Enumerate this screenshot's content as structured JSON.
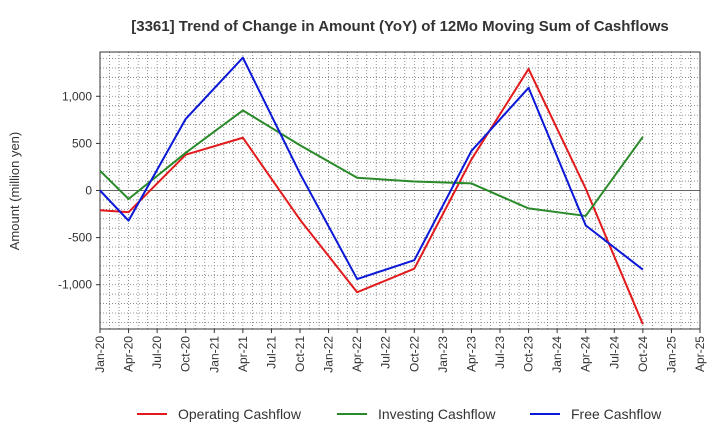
{
  "chart_data": {
    "type": "line",
    "title": "[3361]  Trend of Change in Amount (YoY) of 12Mo Moving Sum of Cashflows",
    "xlabel": "",
    "ylabel": "Amount (million yen)",
    "ylim": [
      -1470,
      1470
    ],
    "y_ticks": [
      1000,
      500,
      0,
      -500,
      -1000
    ],
    "y_tick_labels": [
      "1,000",
      "500",
      "0",
      "-500",
      "-1,000"
    ],
    "x_tick_labels": [
      "Jan-20",
      "Apr-20",
      "Jul-20",
      "Oct-20",
      "Jan-21",
      "Apr-21",
      "Jul-21",
      "Oct-21",
      "Jan-22",
      "Apr-22",
      "Jul-22",
      "Oct-22",
      "Jan-23",
      "Apr-23",
      "Jul-23",
      "Oct-23",
      "Jan-24",
      "Apr-24",
      "Jul-24",
      "Oct-24",
      "Jan-25",
      "Apr-25"
    ],
    "x_index_max": 63,
    "grid": true,
    "legend_position": "bottom",
    "series": [
      {
        "name": "Operating Cashflow",
        "color": "#e31a1c",
        "points": [
          [
            0,
            -210
          ],
          [
            3,
            -230
          ],
          [
            9,
            380
          ],
          [
            15,
            560
          ],
          [
            21,
            -310
          ],
          [
            27,
            -1080
          ],
          [
            33,
            -830
          ],
          [
            39,
            330
          ],
          [
            45,
            1290
          ],
          [
            51,
            20
          ],
          [
            57,
            -1420
          ]
        ]
      },
      {
        "name": "Investing Cashflow",
        "color": "#2a8a2a",
        "points": [
          [
            0,
            210
          ],
          [
            3,
            -90
          ],
          [
            9,
            400
          ],
          [
            15,
            850
          ],
          [
            21,
            480
          ],
          [
            27,
            135
          ],
          [
            33,
            95
          ],
          [
            39,
            75
          ],
          [
            45,
            -190
          ],
          [
            51,
            -270
          ],
          [
            57,
            570
          ]
        ]
      },
      {
        "name": "Free Cashflow",
        "color": "#0b18d8",
        "points": [
          [
            0,
            0
          ],
          [
            3,
            -320
          ],
          [
            9,
            760
          ],
          [
            15,
            1410
          ],
          [
            21,
            180
          ],
          [
            27,
            -940
          ],
          [
            33,
            -740
          ],
          [
            39,
            420
          ],
          [
            45,
            1090
          ],
          [
            51,
            -370
          ],
          [
            57,
            -840
          ]
        ]
      }
    ]
  }
}
